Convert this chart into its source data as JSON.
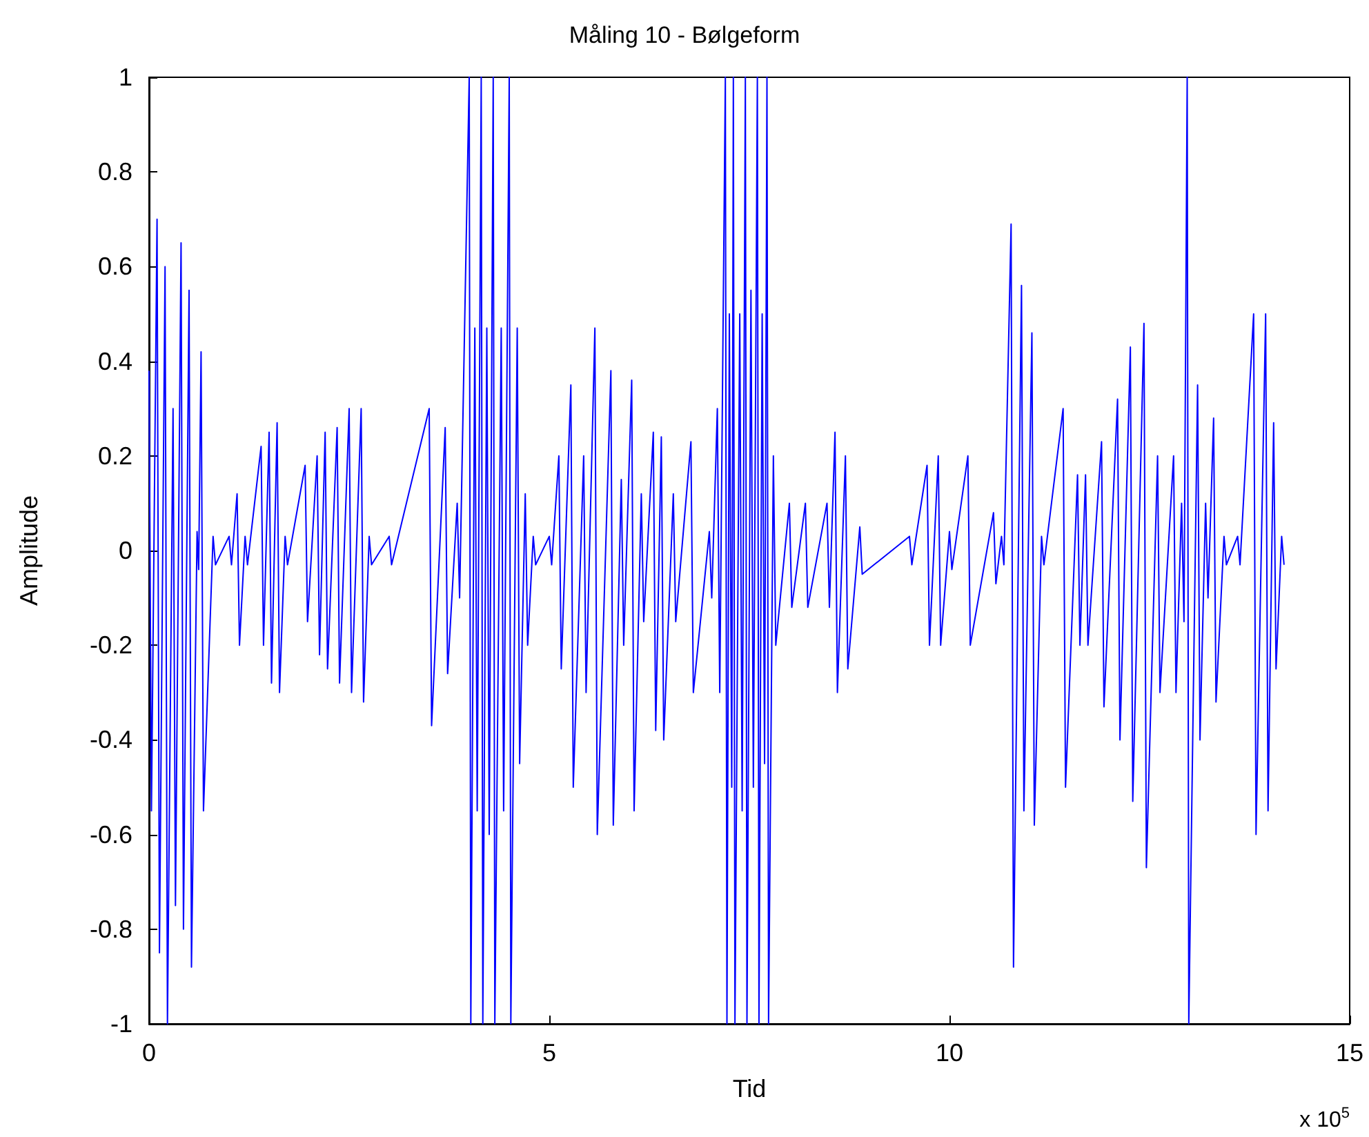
{
  "chart_data": {
    "type": "line",
    "title": "Måling 10 - Bølgeform",
    "xlabel": "Tid",
    "ylabel": "Amplitude",
    "annotations": [
      "x 10$^{5}$"
    ],
    "xlim": [
      0,
      15
    ],
    "xticks": [
      0,
      5,
      10,
      15
    ],
    "ylim": [
      -1,
      1
    ],
    "yticks": [
      -1,
      -0.8,
      -0.6,
      -0.4,
      -0.2,
      0,
      0.2,
      0.4,
      0.6,
      0.8,
      1
    ],
    "grid": false,
    "series": [
      {
        "color": "#0000ff",
        "x": [
          0,
          0.03,
          0.1,
          0.13,
          0.2,
          0.23,
          0.3,
          0.33,
          0.4,
          0.43,
          0.5,
          0.53,
          0.6,
          0.62,
          0.65,
          0.68,
          0.8,
          0.83,
          1.0,
          1.03,
          1.1,
          1.13,
          1.2,
          1.23,
          1.4,
          1.43,
          1.5,
          1.53,
          1.6,
          1.63,
          1.7,
          1.73,
          1.95,
          1.98,
          2.1,
          2.13,
          2.2,
          2.23,
          2.35,
          2.38,
          2.5,
          2.53,
          2.65,
          2.68,
          2.75,
          2.78,
          3.0,
          3.03,
          3.5,
          3.53,
          3.7,
          3.73,
          3.85,
          3.88,
          4.0,
          4.02,
          4.07,
          4.1,
          4.15,
          4.17,
          4.22,
          4.25,
          4.3,
          4.32,
          4.4,
          4.43,
          4.5,
          4.52,
          4.6,
          4.63,
          4.7,
          4.73,
          4.8,
          4.83,
          5.0,
          5.03,
          5.12,
          5.15,
          5.27,
          5.3,
          5.43,
          5.46,
          5.57,
          5.6,
          5.77,
          5.8,
          5.9,
          5.93,
          6.03,
          6.06,
          6.15,
          6.18,
          6.3,
          6.33,
          6.4,
          6.43,
          6.55,
          6.58,
          6.77,
          6.8,
          7.0,
          7.03,
          7.1,
          7.13,
          7.2,
          7.22,
          7.25,
          7.28,
          7.3,
          7.32,
          7.38,
          7.41,
          7.45,
          7.47,
          7.52,
          7.55,
          7.6,
          7.62,
          7.66,
          7.69,
          7.72,
          7.74,
          7.8,
          7.83,
          8.0,
          8.03,
          8.2,
          8.23,
          8.47,
          8.5,
          8.57,
          8.6,
          8.7,
          8.73,
          8.88,
          8.91,
          9.5,
          9.53,
          9.72,
          9.75,
          9.86,
          9.89,
          10.0,
          10.03,
          10.23,
          10.26,
          10.55,
          10.58,
          10.65,
          10.68,
          10.77,
          10.8,
          10.9,
          10.93,
          11.03,
          11.06,
          11.15,
          11.18,
          11.42,
          11.45,
          11.6,
          11.63,
          11.7,
          11.73,
          11.9,
          11.93,
          12.1,
          12.13,
          12.26,
          12.29,
          12.43,
          12.46,
          12.6,
          12.63,
          12.8,
          12.83,
          12.9,
          12.93,
          12.97,
          12.99,
          13.1,
          13.13,
          13.2,
          13.23,
          13.3,
          13.33,
          13.43,
          13.46,
          13.6,
          13.63,
          13.8,
          13.83,
          13.95,
          13.98,
          14.05,
          14.08,
          14.15,
          14.18
        ],
        "values": [
          0.38,
          -0.55,
          0.7,
          -0.85,
          0.6,
          -1.0,
          0.3,
          -0.75,
          0.65,
          -0.8,
          0.55,
          -0.88,
          0.04,
          -0.04,
          0.42,
          -0.55,
          0.03,
          -0.03,
          0.03,
          -0.03,
          0.12,
          -0.2,
          0.03,
          -0.03,
          0.22,
          -0.2,
          0.25,
          -0.28,
          0.27,
          -0.3,
          0.03,
          -0.03,
          0.18,
          -0.15,
          0.2,
          -0.22,
          0.25,
          -0.25,
          0.26,
          -0.28,
          0.3,
          -0.3,
          0.3,
          -0.32,
          0.03,
          -0.03,
          0.03,
          -0.03,
          0.3,
          -0.37,
          0.26,
          -0.26,
          0.1,
          -0.1,
          1,
          -1,
          0.47,
          -0.55,
          1,
          -1,
          0.47,
          -0.6,
          1,
          -1,
          0.47,
          -0.55,
          1,
          -1,
          0.47,
          -0.45,
          0.12,
          -0.2,
          0.03,
          -0.03,
          0.03,
          -0.03,
          0.2,
          -0.25,
          0.35,
          -0.5,
          0.2,
          -0.3,
          0.47,
          -0.6,
          0.38,
          -0.58,
          0.15,
          -0.2,
          0.36,
          -0.55,
          0.12,
          -0.15,
          0.25,
          -0.38,
          0.24,
          -0.4,
          0.12,
          -0.15,
          0.23,
          -0.3,
          0.04,
          -0.1,
          0.3,
          -0.3,
          1,
          -1,
          0.5,
          -0.5,
          1,
          -1,
          0.5,
          -0.55,
          1,
          -1,
          0.55,
          -0.5,
          1,
          -1,
          0.5,
          -0.45,
          1,
          -1,
          0.2,
          -0.2,
          0.1,
          -0.12,
          0.1,
          -0.12,
          0.1,
          -0.12,
          0.25,
          -0.3,
          0.2,
          -0.25,
          0.05,
          -0.05,
          0.03,
          -0.03,
          0.18,
          -0.2,
          0.2,
          -0.2,
          0.04,
          -0.04,
          0.2,
          -0.2,
          0.08,
          -0.07,
          0.03,
          -0.03,
          0.69,
          -0.88,
          0.56,
          -0.55,
          0.46,
          -0.58,
          0.03,
          -0.03,
          0.3,
          -0.5,
          0.16,
          -0.2,
          0.16,
          -0.2,
          0.23,
          -0.33,
          0.32,
          -0.4,
          0.43,
          -0.53,
          0.48,
          -0.67,
          0.2,
          -0.3,
          0.2,
          -0.3,
          0.1,
          -0.15,
          1,
          -1,
          0.35,
          -0.4,
          0.1,
          -0.1,
          0.28,
          -0.32,
          0.03,
          -0.03,
          0.03,
          -0.03,
          0.5,
          -0.6,
          0.5,
          -0.55,
          0.27,
          -0.25,
          0.03,
          -0.03
        ]
      }
    ]
  }
}
